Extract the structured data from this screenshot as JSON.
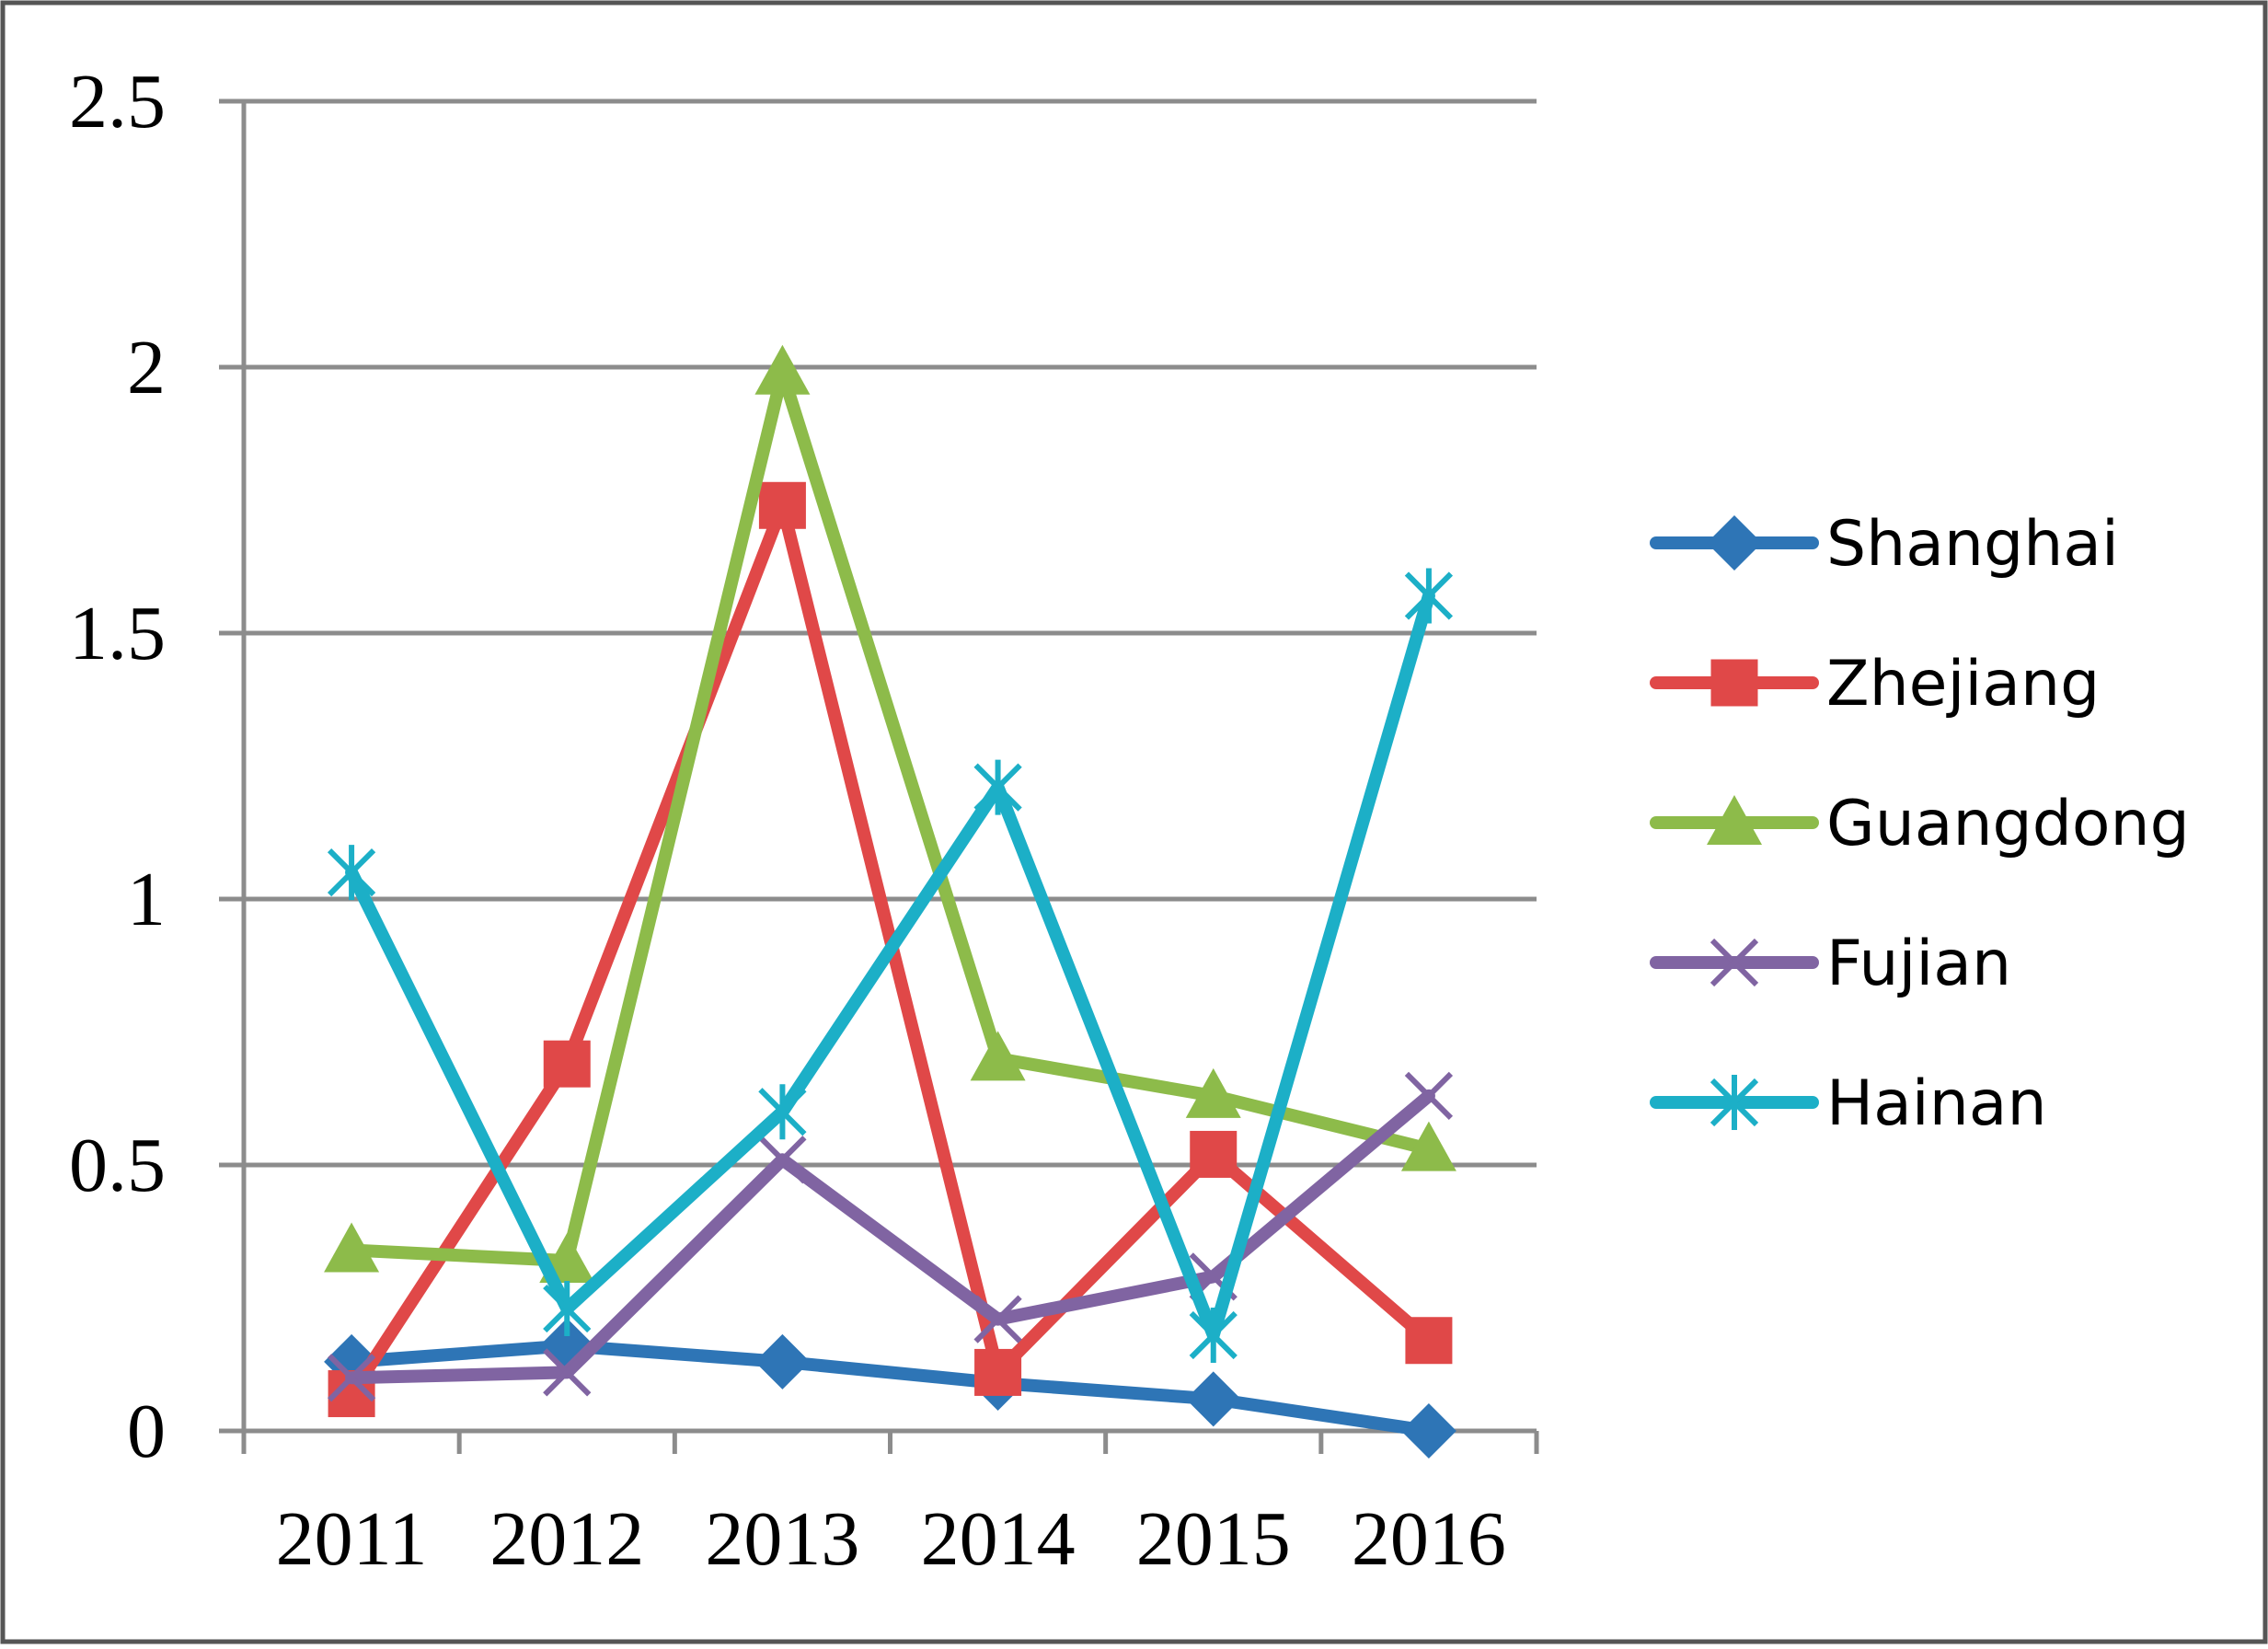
{
  "chart_data": {
    "type": "line",
    "title": "",
    "xlabel": "",
    "ylabel": "",
    "categories": [
      "2011",
      "2012",
      "2013",
      "2014",
      "2015",
      "2016"
    ],
    "ylim": [
      0,
      2.5
    ],
    "yticks": [
      "0",
      "0.5",
      "1",
      "1.5",
      "2",
      "2.5"
    ],
    "grid": true,
    "legend_position": "right",
    "series": [
      {
        "name": "Shanghai",
        "color": "#2E75B6",
        "marker": "diamond",
        "values": [
          0.13,
          0.16,
          0.13,
          0.09,
          0.06,
          0.0
        ]
      },
      {
        "name": "Zhejiang",
        "color": "#E04848",
        "marker": "square",
        "values": [
          0.07,
          0.69,
          1.74,
          0.11,
          0.52,
          0.17
        ]
      },
      {
        "name": "Guangdong",
        "color": "#8DBB4A",
        "marker": "triangle",
        "values": [
          0.34,
          0.32,
          1.99,
          0.7,
          0.63,
          0.53
        ]
      },
      {
        "name": "Fujian",
        "color": "#8064A2",
        "marker": "x",
        "values": [
          0.1,
          0.11,
          0.51,
          0.21,
          0.29,
          0.63
        ]
      },
      {
        "name": "Hainan",
        "color": "#1CAFC7",
        "marker": "star",
        "values": [
          1.05,
          0.23,
          0.6,
          1.21,
          0.18,
          1.57
        ]
      }
    ]
  }
}
